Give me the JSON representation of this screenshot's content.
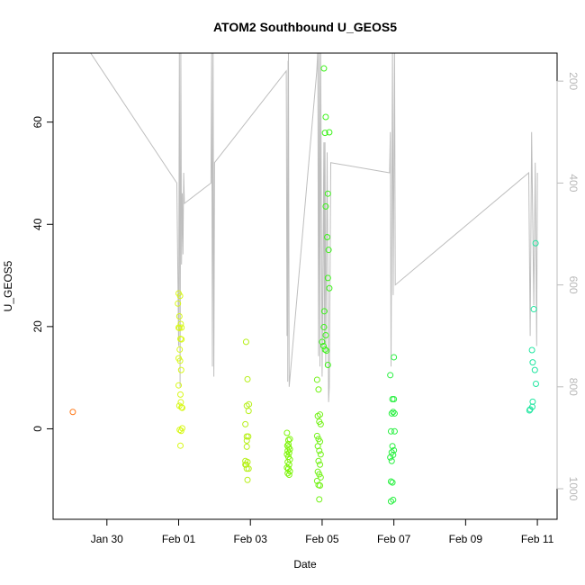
{
  "chart_data": {
    "type": "scatter",
    "title": "ATOM2 Southbound U_GEOS5",
    "xlabel": "Date",
    "ylabel": "U_GEOS5",
    "x_tick_labels": [
      "Jan 30",
      "Feb 01",
      "Feb 03",
      "Feb 05",
      "Feb 07",
      "Feb 09",
      "Feb 11"
    ],
    "x_tick_values": [
      -2,
      0,
      2,
      4,
      6,
      8,
      10
    ],
    "xlim": [
      -3.5,
      10.55
    ],
    "ylim": [
      -17.7,
      73.5
    ],
    "y_ticks": [
      0,
      20,
      40,
      60
    ],
    "right_axis": {
      "label": "",
      "ticks": [
        200,
        400,
        600,
        800,
        1000
      ],
      "lim": [
        145,
        1060
      ],
      "reversed": true,
      "color": "#bbbbbb"
    },
    "grid": false,
    "legend": "none",
    "colors": {
      "line": "#bebebe",
      "jan29": "#ff7a1a",
      "feb01": "#d8f81a",
      "feb02": "#b7f01a",
      "feb03": "#7ef50a",
      "feb04": "#73f218",
      "feb05": "#3cf21a",
      "feb06": "#28f040",
      "feb11": "#20e6a0"
    },
    "series": [
      {
        "color_key": "jan29",
        "x": [
          -2.95
        ],
        "y": [
          3.3
        ]
      },
      {
        "color_key": "feb01",
        "x": [
          -0.02,
          0.0,
          0.02,
          0.04,
          0.06,
          0.0,
          0.02,
          0.05,
          0.08,
          0.03,
          0.0,
          0.04,
          0.07,
          0.0,
          0.05,
          0.08,
          0.02,
          0.06,
          0.1,
          0.03,
          0.07,
          0.1,
          0.05,
          0.08
        ],
        "y": [
          24.5,
          26.5,
          22.0,
          26.0,
          20.5,
          19.8,
          19.7,
          17.6,
          19.8,
          15.5,
          13.8,
          13.3,
          11.5,
          8.5,
          6.7,
          4.2,
          4.5,
          5.2,
          4.1,
          -0.2,
          -0.4,
          0.1,
          -3.3,
          17.5
        ]
      },
      {
        "color_key": "feb02",
        "x": [
          1.88,
          1.92,
          1.96,
          1.9,
          1.95,
          1.86,
          1.9,
          1.94,
          1.9,
          1.86,
          1.92,
          1.88,
          1.95,
          1.9,
          1.86,
          1.92,
          1.9
        ],
        "y": [
          17.0,
          9.7,
          4.8,
          4.5,
          3.5,
          0.9,
          -1.5,
          -1.5,
          -3.5,
          -6.3,
          -6.5,
          -7.0,
          -7.8,
          -7.8,
          -7.0,
          -10.0,
          -2.3
        ]
      },
      {
        "color_key": "feb03",
        "x": [
          3.02,
          3.06,
          3.1,
          3.03,
          3.07,
          3.1,
          3.04,
          3.08,
          3.02,
          3.06,
          3.1,
          3.04,
          3.08,
          3.02,
          3.06,
          3.1,
          3.04,
          3.08,
          3.06
        ],
        "y": [
          -0.8,
          -2.2,
          -2.0,
          -3.3,
          -3.6,
          -4.0,
          -4.3,
          -4.7,
          -5.0,
          -5.5,
          -6.0,
          -6.5,
          -7.0,
          -7.6,
          -7.8,
          -8.3,
          -8.7,
          -9.0,
          -3.0
        ]
      },
      {
        "color_key": "feb04",
        "x": [
          3.86,
          3.9,
          3.94,
          3.88,
          3.92,
          3.96,
          3.86,
          3.9,
          3.94,
          3.88,
          3.92,
          3.96,
          3.9,
          3.94,
          3.88,
          3.92,
          3.96,
          3.86,
          3.9,
          3.94,
          3.92
        ],
        "y": [
          9.6,
          7.7,
          2.8,
          2.5,
          1.4,
          0.9,
          -1.4,
          -2.0,
          -2.5,
          -3.4,
          -4.3,
          -5.0,
          -6.3,
          -7.0,
          -8.4,
          -8.9,
          -9.5,
          -10.2,
          -11.0,
          -11.1,
          -13.8
        ]
      },
      {
        "color_key": "feb05",
        "x": [
          4.05,
          4.1,
          4.2,
          4.08,
          4.16,
          4.1,
          4.14,
          4.18,
          4.16,
          4.2,
          4.06,
          4.05,
          4.1,
          4.0,
          4.04,
          4.08,
          4.12,
          4.16
        ],
        "y": [
          70.5,
          61.0,
          58.0,
          57.9,
          46.0,
          43.5,
          37.5,
          35.0,
          29.5,
          27.5,
          23.0,
          19.9,
          18.3,
          17.0,
          16.2,
          15.5,
          15.3,
          12.5
        ]
      },
      {
        "color_key": "feb06",
        "x": [
          6.0,
          5.9,
          5.96,
          6.0,
          6.02,
          5.94,
          5.98,
          6.02,
          5.92,
          5.96,
          6.0,
          5.94,
          5.98,
          5.9,
          5.94,
          5.92,
          5.96,
          5.98,
          5.92
        ],
        "y": [
          14.0,
          10.5,
          5.8,
          5.8,
          3.0,
          3.0,
          3.3,
          -0.5,
          -0.5,
          -3.4,
          -4.2,
          -4.6,
          -5.1,
          -5.6,
          -6.3,
          -10.3,
          -10.5,
          -13.9,
          -14.2
        ]
      },
      {
        "color_key": "feb11",
        "x": [
          9.95,
          9.9,
          9.85,
          9.87,
          9.93,
          9.96,
          9.87,
          9.86,
          9.8,
          9.78
        ],
        "y": [
          36.3,
          23.4,
          15.4,
          13.0,
          11.5,
          8.8,
          5.3,
          4.3,
          3.8,
          3.6
        ]
      }
    ]
  }
}
